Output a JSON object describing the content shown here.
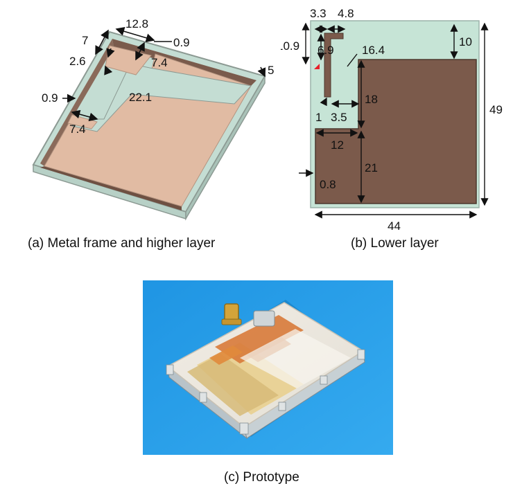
{
  "panel_a": {
    "caption": "(a) Metal frame and higher layer",
    "labels": {
      "w_12_8": "12.8",
      "w_7": "7",
      "w_0_9_top": "0.9",
      "w_2_6": "2.6",
      "w_7_4_top": "7.4",
      "h_5": "5",
      "w_0_9_left": "0.9",
      "w_22_1": "22.1",
      "w_7_4_bot": "7.4"
    },
    "colors": {
      "frame": "#c4ddd3",
      "copper": "#e1bba3",
      "edge": "#8c9a93",
      "wall": "#7a5b4c"
    }
  },
  "panel_b": {
    "caption": "(b) Lower layer",
    "labels": {
      "w_3_3": "3.3",
      "w_4_8": "4.8",
      "h_10_9": "10.9",
      "h_6_9": "6.9",
      "l_16_4": "16.4",
      "h_10": "10",
      "h_18": "18",
      "w_1": "1",
      "w_3_5": "3.5",
      "h_49": "49",
      "w_12": "12",
      "h_21": "21",
      "w_0_8": "0.8",
      "w_44": "44"
    },
    "colors": {
      "substrate": "#c6e4d6",
      "ground": "#7b5a4b",
      "feed": "#e8202a"
    }
  },
  "panel_c": {
    "caption": "(c) Prototype",
    "colors": {
      "background": "#2b9ee6"
    }
  }
}
